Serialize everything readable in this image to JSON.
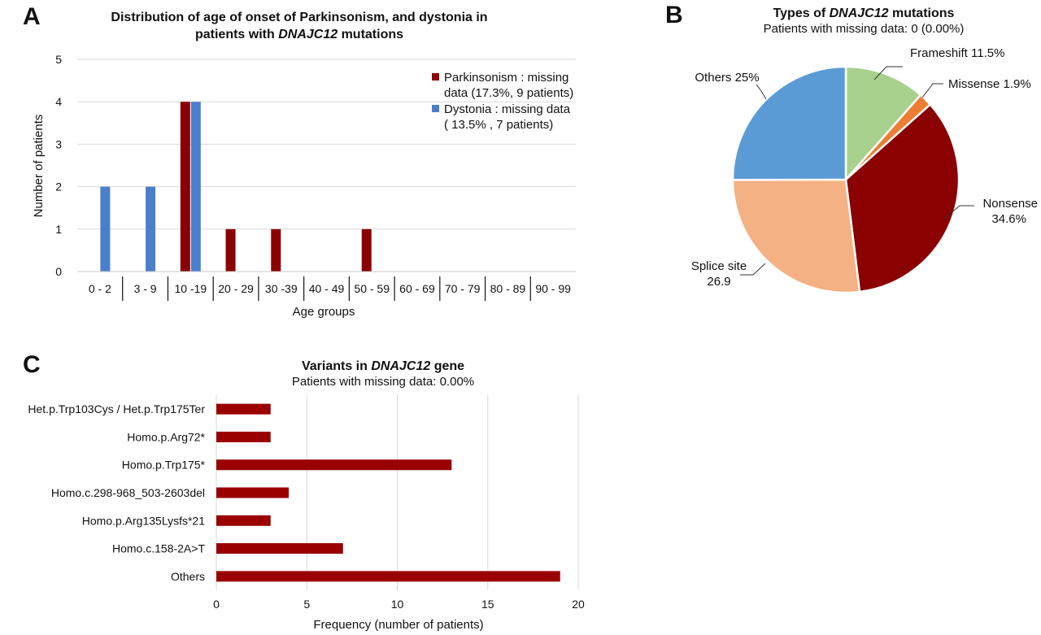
{
  "chart_data": [
    {
      "panel": "A",
      "type": "bar",
      "title_lines": [
        "Distribution of age of onset of Parkinsonism, and dystonia in",
        "patients with ",
        "DNAJC12",
        " mutations"
      ],
      "xlabel": "Age groups",
      "ylabel": "Number of patients",
      "ylim": [
        0,
        5
      ],
      "yticks": [
        "0",
        "1",
        "2",
        "3",
        "4",
        "5"
      ],
      "grid": true,
      "legend_position": "top-right",
      "categories": [
        "0 - 2",
        "3 - 9",
        "10 -19",
        "20 - 29",
        "30 -39",
        "40 - 49",
        "50 - 59",
        "60 - 69",
        "70 - 79",
        "80 - 89",
        "90 - 99"
      ],
      "series": [
        {
          "name_lines": [
            "Parkinsonism : missing",
            "data (17.3%, 9 patients)"
          ],
          "color": "#8b0000",
          "values": [
            0,
            0,
            4,
            1,
            1,
            0,
            1,
            0,
            0,
            0,
            0
          ]
        },
        {
          "name_lines": [
            "Dystonia : missing data",
            "( 13.5% , 7 patients)"
          ],
          "color": "#4a7fcb",
          "values": [
            2,
            2,
            4,
            0,
            0,
            0,
            0,
            0,
            0,
            0,
            0
          ]
        }
      ]
    },
    {
      "panel": "B",
      "type": "pie",
      "title_pre": "Types of ",
      "title_italic": "DNAJC12",
      "title_post": " mutations",
      "subtitle": "Patients with missing data: 0 (0.00%)",
      "slices": [
        {
          "label": "Frameshift 11.5%",
          "value": 11.5,
          "color": "#a9d18e"
        },
        {
          "label": "Missense  1.9%",
          "value": 1.9,
          "color": "#ed7d31"
        },
        {
          "label_lines": [
            "Nonsense",
            "34.6%"
          ],
          "value": 34.6,
          "color": "#8b0000"
        },
        {
          "label_lines": [
            "Splice site",
            "26.9"
          ],
          "value": 26.9,
          "color": "#f4b183"
        },
        {
          "label": "Others 25%",
          "value": 25,
          "color": "#5b9bd5"
        }
      ]
    },
    {
      "panel": "C",
      "type": "bar",
      "orientation": "horizontal",
      "title_pre": "Variants in ",
      "title_italic": "DNAJC12",
      "title_post": " gene",
      "subtitle": "Patients with missing data: 0.00%",
      "xlabel": "Frequency (number of patients)",
      "xlim": [
        0,
        20
      ],
      "xticks": [
        "0",
        "5",
        "10",
        "15",
        "20"
      ],
      "grid": true,
      "color": "#9b0000",
      "categories": [
        "Het.p.Trp103Cys / Het.p.Trp175Ter",
        "Homo.p.Arg72*",
        "Homo.p.Trp175*",
        "Homo.c.298-968_503-2603del",
        "Homo.p.Arg135Lysfs*21",
        "Homo.c.158-2A>T",
        "Others"
      ],
      "values": [
        3,
        3,
        13,
        4,
        3,
        7,
        19
      ]
    }
  ],
  "panel_letters": [
    "A",
    "B",
    "C"
  ]
}
